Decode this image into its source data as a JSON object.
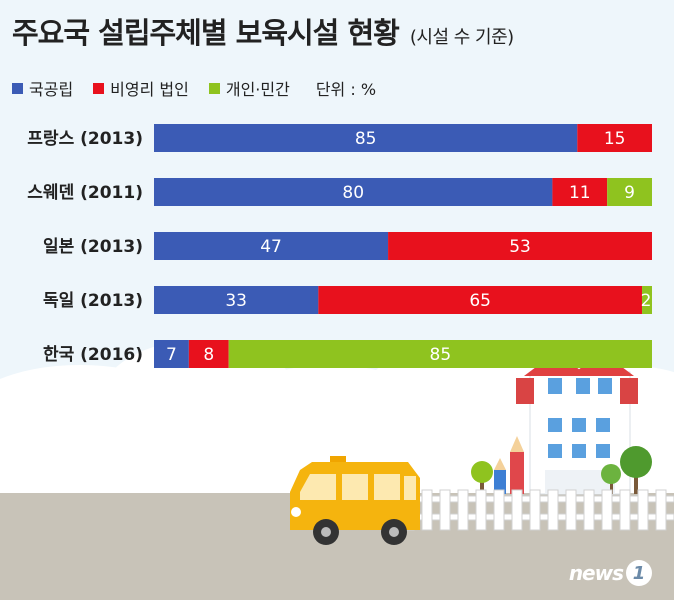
{
  "title": "주요국 설립주체별 보육시설 현황",
  "subtitle": "(시설 수 기준)",
  "unit": "단위 : %",
  "colors": {
    "public": "#3b5bb5",
    "nonprofit": "#e8111d",
    "private": "#8fc31f"
  },
  "brand": {
    "text": "news",
    "badge": "1"
  },
  "chart_data": {
    "type": "bar",
    "stacked": true,
    "orientation": "horizontal",
    "xlim": [
      0,
      100
    ],
    "categories": [
      "프랑스 (2013)",
      "스웨덴 (2011)",
      "일본 (2013)",
      "독일 (2013)",
      "한국 (2016)"
    ],
    "series": [
      {
        "name": "국공립",
        "color": "#3b5bb5",
        "values": [
          85,
          80,
          47,
          33,
          7
        ],
        "labels": [
          "85",
          "80",
          "47",
          "33",
          "7"
        ]
      },
      {
        "name": "비영리 법인",
        "color": "#e8111d",
        "values": [
          15,
          11,
          53,
          65,
          8
        ],
        "labels": [
          "15",
          "11",
          "53",
          "65",
          "8"
        ]
      },
      {
        "name": "개인·민간",
        "color": "#8fc31f",
        "values": [
          0,
          9,
          0,
          2,
          85
        ],
        "labels": [
          "",
          "9",
          "",
          "2",
          "85"
        ]
      }
    ]
  }
}
